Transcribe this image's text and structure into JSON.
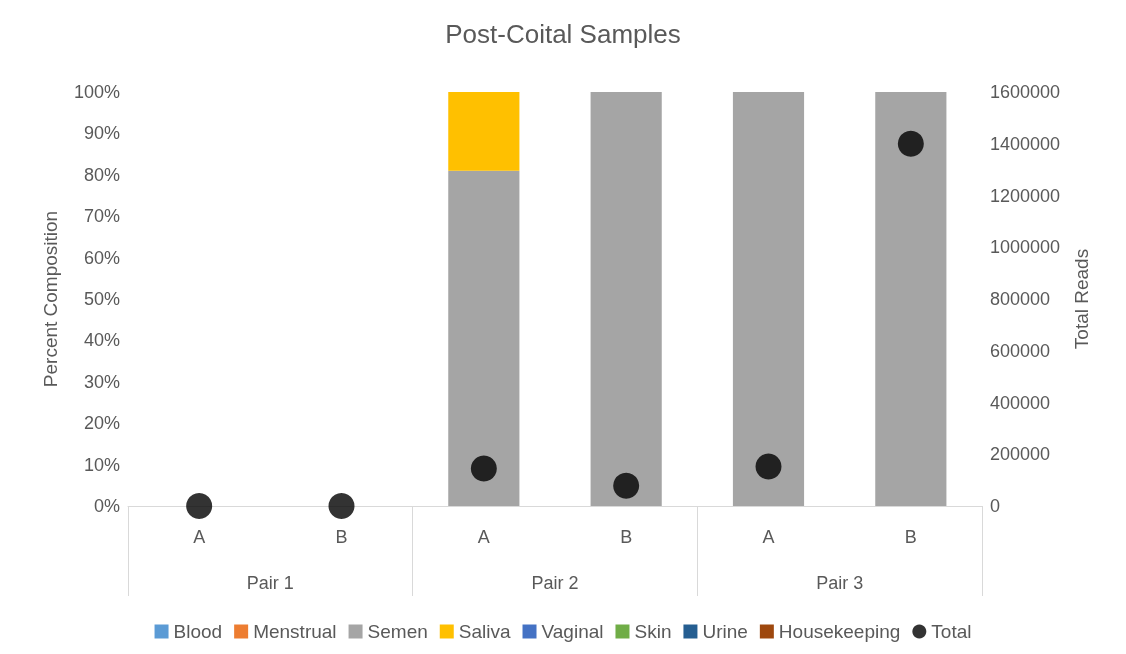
{
  "chart_data": {
    "type": "bar",
    "title": "Post-Coital Samples",
    "ylabel": "Percent Composition",
    "y2label": "Total Reads",
    "stacked": true,
    "categories": [
      "A",
      "B",
      "A",
      "B",
      "A",
      "B"
    ],
    "annotations": [
      "Pair 1",
      "Pair 2",
      "Pair 3"
    ],
    "series": [
      {
        "name": "Blood",
        "color": "#5b9bd5",
        "values": [
          0,
          0,
          0,
          0,
          0,
          0
        ]
      },
      {
        "name": "Menstrual",
        "color": "#ed7d31",
        "values": [
          0,
          0,
          0,
          0,
          0,
          0
        ]
      },
      {
        "name": "Semen",
        "color": "#a5a5a5",
        "values": [
          0,
          0,
          81,
          100,
          100,
          100
        ]
      },
      {
        "name": "Saliva",
        "color": "#ffc000",
        "values": [
          0,
          0,
          19,
          0,
          0,
          0
        ]
      },
      {
        "name": "Vaginal",
        "color": "#4472c4",
        "values": [
          0,
          0,
          0,
          0,
          0,
          0
        ]
      },
      {
        "name": "Skin",
        "color": "#70ad47",
        "values": [
          0,
          0,
          0,
          0,
          0,
          0
        ]
      },
      {
        "name": "Urine",
        "color": "#255e91",
        "values": [
          0,
          0,
          0,
          0,
          0,
          0
        ]
      },
      {
        "name": "Housekeeping",
        "color": "#9e480e",
        "values": [
          0,
          0,
          0,
          0,
          0,
          0
        ]
      },
      {
        "name": "Total",
        "type": "scatter",
        "axis": "y2",
        "color": "#000000",
        "marker": "circle",
        "values": [
          0,
          0,
          145000,
          78000,
          153000,
          1400000
        ]
      }
    ],
    "ylim": [
      0,
      100
    ],
    "yticks": [
      {
        "value": 0,
        "label": "0%"
      },
      {
        "value": 10,
        "label": "10%"
      },
      {
        "value": 20,
        "label": "20%"
      },
      {
        "value": 30,
        "label": "30%"
      },
      {
        "value": 40,
        "label": "40%"
      },
      {
        "value": 50,
        "label": "50%"
      },
      {
        "value": 60,
        "label": "60%"
      },
      {
        "value": 70,
        "label": "70%"
      },
      {
        "value": 80,
        "label": "80%"
      },
      {
        "value": 90,
        "label": "90%"
      },
      {
        "value": 100,
        "label": "100%"
      }
    ],
    "y2lim": [
      0,
      1600000
    ],
    "y2ticks": [
      0,
      200000,
      400000,
      600000,
      800000,
      1000000,
      1200000,
      1400000,
      1600000
    ],
    "grid": false,
    "legend": "bottom"
  }
}
